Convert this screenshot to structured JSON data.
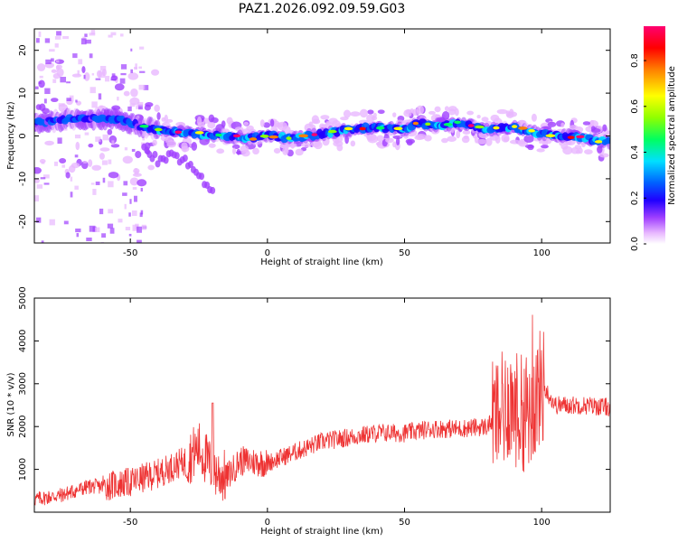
{
  "chart_data": [
    {
      "type": "heatmap",
      "title": "PAZ1.2026.092.09.59.G03",
      "xlabel": "Height of straight line (km)",
      "ylabel": "Frequency (Hz)",
      "xlim": [
        -85,
        125
      ],
      "ylim": [
        -25,
        25
      ],
      "xticks": [
        -50,
        0,
        50,
        100
      ],
      "yticks": [
        20,
        10,
        0,
        -10,
        -20
      ],
      "colorbar": {
        "label": "Normalized spectral amplitude",
        "range": [
          0.0,
          0.95
        ],
        "ticks": [
          0.0,
          0.2,
          0.4,
          0.6,
          0.8
        ],
        "colormap": [
          "#ffffff",
          "#e8b8ff",
          "#a040ff",
          "#2000ff",
          "#0060ff",
          "#00e0ff",
          "#00ff60",
          "#90ff00",
          "#ffff00",
          "#ff8000",
          "#ff0000",
          "#ff0070"
        ]
      },
      "ridge": {
        "description_points_x": [
          -85,
          -70,
          -55,
          -45,
          -35,
          -25,
          -15,
          -5,
          0,
          10,
          20,
          30,
          40,
          50,
          55,
          60,
          70,
          80,
          90,
          100,
          110,
          125
        ],
        "freq_hz": [
          3,
          4,
          4,
          2,
          1,
          0.5,
          0,
          -0.5,
          0,
          -0.5,
          0.5,
          1.5,
          2,
          1.5,
          3,
          2.5,
          3,
          1.5,
          2,
          0.5,
          0,
          -1.5
        ]
      },
      "branch": {
        "x": [
          -45,
          -40,
          -35,
          -30,
          -25,
          -20
        ],
        "freq_hz": [
          -2,
          -6,
          -4,
          -6,
          -9,
          -13
        ]
      }
    },
    {
      "type": "line",
      "xlabel": "Height of straight line (km)",
      "ylabel": "SNR (10 * v/v)",
      "xlim": [
        -85,
        125
      ],
      "ylim": [
        0,
        5000
      ],
      "xticks": [
        -50,
        0,
        50,
        100
      ],
      "yticks": [
        1000,
        2000,
        3000,
        4000,
        5000
      ],
      "series": [
        {
          "name": "SNR",
          "color": "#ee3333",
          "x": [
            -85,
            -75,
            -65,
            -60,
            -50,
            -40,
            -30,
            -25,
            -20,
            -15,
            -10,
            0,
            10,
            20,
            30,
            40,
            50,
            60,
            70,
            80,
            85,
            88,
            92,
            96,
            100,
            105,
            115,
            125
          ],
          "y": [
            300,
            400,
            600,
            600,
            700,
            900,
            1200,
            1500,
            1000,
            800,
            1200,
            1150,
            1400,
            1650,
            1750,
            1850,
            1850,
            1950,
            1950,
            2000,
            2300,
            2600,
            2300,
            2400,
            3000,
            2500,
            2500,
            2450
          ]
        }
      ]
    }
  ]
}
